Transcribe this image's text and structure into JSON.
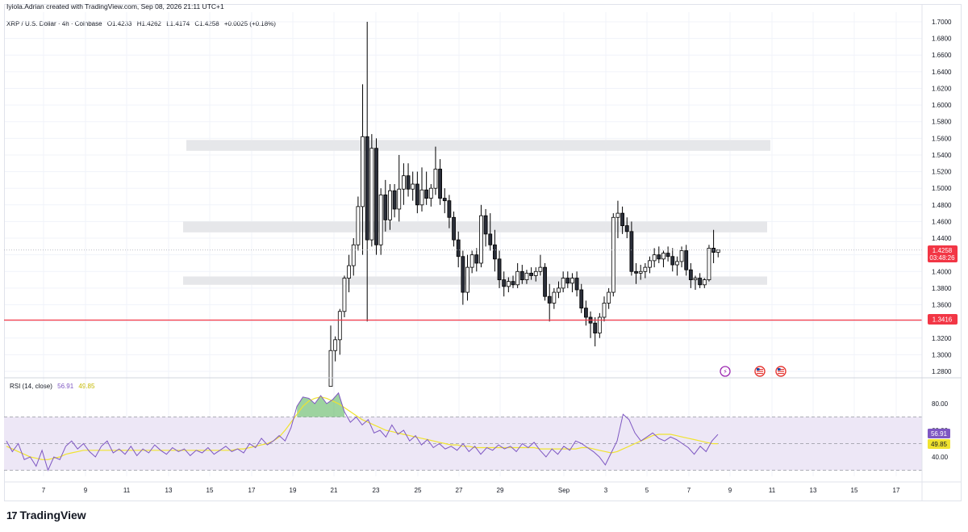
{
  "header": {
    "credit": "Iyiola.Adrian created with TradingView.com, Sep 08, 2026 21:11 UTC+1",
    "symbol": "XRP / U.S. Dollar · 4h · Coinbase",
    "open": "O1.4233",
    "high": "H1.4262",
    "low": "L1.4174",
    "close": "C1.4258",
    "change": "+0.0025 (+0.18%)"
  },
  "rsi_panel": {
    "label": "RSI (14, close)",
    "rsi_value": "56.91",
    "ma_value": "49.85"
  },
  "price_badge": {
    "price": "1.4258",
    "countdown": "03:48:26"
  },
  "level_badge": {
    "price": "1.3416"
  },
  "footer": {
    "brand": "TradingView"
  },
  "colors": {
    "up": "#ffffff",
    "down": "#000000",
    "support_line": "#f23645",
    "rsi_line": "#7e57c2",
    "rsi_ma": "#f0e32f",
    "rsi_band": "#ede7f6",
    "zone": "#e6e7ea"
  },
  "chart_data": [
    {
      "type": "candlestick",
      "title": "XRP / U.S. Dollar · 4h · Coinbase",
      "ylim": [
        1.27,
        1.705
      ],
      "y_ticks": [
        "1.7000",
        "1.6800",
        "1.6600",
        "1.6400",
        "1.6200",
        "1.6000",
        "1.5800",
        "1.5600",
        "1.5400",
        "1.5200",
        "1.5000",
        "1.4800",
        "1.4600",
        "1.4400",
        "1.4200",
        "1.4000",
        "1.3800",
        "1.3600",
        "1.3400",
        "1.3200",
        "1.3000",
        "1.2800"
      ],
      "x_ticks": [
        "7",
        "9",
        "11",
        "13",
        "15",
        "17",
        "19",
        "21",
        "23",
        "25",
        "27",
        "29",
        "Sep",
        "3",
        "5",
        "7",
        "9",
        "11",
        "13",
        "15",
        "17"
      ],
      "zones": [
        {
          "from": 1.545,
          "to": 1.558,
          "x_start": "13",
          "x_end": "11"
        },
        {
          "from": 1.447,
          "to": 1.46,
          "x_start": "13",
          "x_end": "11"
        },
        {
          "from": 1.384,
          "to": 1.394,
          "x_start": "13",
          "x_end": "11"
        }
      ],
      "horizontal_line": 1.3416,
      "last_price": 1.4258,
      "candles": [
        [
          1.262,
          1.335,
          1.258,
          1.305
        ],
        [
          1.305,
          1.322,
          1.292,
          1.318
        ],
        [
          1.318,
          1.355,
          1.3,
          1.352
        ],
        [
          1.352,
          1.395,
          1.345,
          1.392
        ],
        [
          1.392,
          1.42,
          1.375,
          1.407
        ],
        [
          1.407,
          1.44,
          1.395,
          1.432
        ],
        [
          1.432,
          1.49,
          1.425,
          1.478
        ],
        [
          1.478,
          1.625,
          1.42,
          1.562
        ],
        [
          1.562,
          1.7,
          1.34,
          1.438
        ],
        [
          1.438,
          1.565,
          1.43,
          1.548
        ],
        [
          1.548,
          1.56,
          1.42,
          1.432
        ],
        [
          1.432,
          1.5,
          1.42,
          1.492
        ],
        [
          1.492,
          1.51,
          1.448,
          1.462
        ],
        [
          1.462,
          1.505,
          1.45,
          1.497
        ],
        [
          1.497,
          1.505,
          1.465,
          1.475
        ],
        [
          1.475,
          1.54,
          1.46,
          1.499
        ],
        [
          1.499,
          1.53,
          1.48,
          1.515
        ],
        [
          1.515,
          1.53,
          1.49,
          1.499
        ],
        [
          1.499,
          1.52,
          1.485,
          1.505
        ],
        [
          1.505,
          1.52,
          1.47,
          1.48
        ],
        [
          1.48,
          1.525,
          1.472,
          1.498
        ],
        [
          1.498,
          1.52,
          1.48,
          1.488
        ],
        [
          1.488,
          1.505,
          1.478,
          1.5
        ],
        [
          1.5,
          1.55,
          1.492,
          1.523
        ],
        [
          1.523,
          1.535,
          1.48,
          1.488
        ],
        [
          1.488,
          1.5,
          1.47,
          1.485
        ],
        [
          1.485,
          1.492,
          1.452,
          1.465
        ],
        [
          1.465,
          1.472,
          1.43,
          1.438
        ],
        [
          1.438,
          1.448,
          1.405,
          1.418
        ],
        [
          1.418,
          1.425,
          1.36,
          1.375
        ],
        [
          1.375,
          1.42,
          1.365,
          1.405
        ],
        [
          1.405,
          1.425,
          1.398,
          1.42
        ],
        [
          1.42,
          1.428,
          1.4,
          1.41
        ],
        [
          1.41,
          1.48,
          1.405,
          1.467
        ],
        [
          1.467,
          1.475,
          1.43,
          1.445
        ],
        [
          1.445,
          1.47,
          1.425,
          1.432
        ],
        [
          1.432,
          1.45,
          1.4,
          1.415
        ],
        [
          1.415,
          1.425,
          1.38,
          1.39
        ],
        [
          1.39,
          1.4,
          1.37,
          1.382
        ],
        [
          1.382,
          1.393,
          1.375,
          1.388
        ],
        [
          1.388,
          1.395,
          1.38,
          1.384
        ],
        [
          1.384,
          1.41,
          1.38,
          1.4
        ],
        [
          1.4,
          1.408,
          1.385,
          1.39
        ],
        [
          1.39,
          1.402,
          1.385,
          1.398
        ],
        [
          1.398,
          1.405,
          1.39,
          1.395
        ],
        [
          1.395,
          1.405,
          1.388,
          1.4
        ],
        [
          1.4,
          1.42,
          1.395,
          1.405
        ],
        [
          1.405,
          1.41,
          1.365,
          1.37
        ],
        [
          1.37,
          1.385,
          1.34,
          1.362
        ],
        [
          1.362,
          1.38,
          1.355,
          1.375
        ],
        [
          1.375,
          1.388,
          1.368,
          1.38
        ],
        [
          1.38,
          1.4,
          1.375,
          1.392
        ],
        [
          1.392,
          1.4,
          1.38,
          1.386
        ],
        [
          1.386,
          1.398,
          1.375,
          1.392
        ],
        [
          1.392,
          1.4,
          1.37,
          1.378
        ],
        [
          1.378,
          1.385,
          1.35,
          1.356
        ],
        [
          1.356,
          1.365,
          1.335,
          1.345
        ],
        [
          1.345,
          1.352,
          1.32,
          1.338
        ],
        [
          1.338,
          1.345,
          1.31,
          1.326
        ],
        [
          1.326,
          1.35,
          1.32,
          1.345
        ],
        [
          1.345,
          1.37,
          1.34,
          1.362
        ],
        [
          1.362,
          1.38,
          1.355,
          1.375
        ],
        [
          1.375,
          1.47,
          1.37,
          1.465
        ],
        [
          1.465,
          1.485,
          1.44,
          1.47
        ],
        [
          1.47,
          1.478,
          1.445,
          1.455
        ],
        [
          1.455,
          1.465,
          1.44,
          1.448
        ],
        [
          1.448,
          1.46,
          1.395,
          1.4
        ],
        [
          1.4,
          1.41,
          1.385,
          1.398
        ],
        [
          1.398,
          1.408,
          1.39,
          1.4
        ],
        [
          1.4,
          1.41,
          1.392,
          1.405
        ],
        [
          1.405,
          1.418,
          1.398,
          1.413
        ],
        [
          1.413,
          1.428,
          1.405,
          1.42
        ],
        [
          1.42,
          1.43,
          1.41,
          1.415
        ],
        [
          1.415,
          1.425,
          1.405,
          1.422
        ],
        [
          1.422,
          1.43,
          1.412,
          1.418
        ],
        [
          1.418,
          1.428,
          1.4,
          1.408
        ],
        [
          1.408,
          1.418,
          1.395,
          1.412
        ],
        [
          1.412,
          1.43,
          1.405,
          1.425
        ],
        [
          1.425,
          1.432,
          1.395,
          1.402
        ],
        [
          1.402,
          1.41,
          1.38,
          1.39
        ],
        [
          1.39,
          1.395,
          1.378,
          1.392
        ],
        [
          1.392,
          1.398,
          1.38,
          1.384
        ],
        [
          1.384,
          1.392,
          1.38,
          1.39
        ],
        [
          1.39,
          1.432,
          1.388,
          1.428
        ],
        [
          1.428,
          1.45,
          1.41,
          1.423
        ],
        [
          1.423,
          1.426,
          1.417,
          1.4258
        ]
      ],
      "candle_start_x": 410,
      "candle_step": 5.65
    },
    {
      "type": "line",
      "title": "RSI (14, close)",
      "ylim": [
        20,
        90
      ],
      "y_ticks": [
        "80.00",
        "60.00",
        "40.00"
      ],
      "bands": [
        30,
        50,
        70
      ],
      "series": [
        {
          "name": "RSI",
          "values": [
            52,
            44,
            50,
            38,
            40,
            33,
            45,
            30,
            40,
            38,
            48,
            52,
            46,
            50,
            44,
            40,
            48,
            52,
            43,
            46,
            42,
            48,
            41,
            46,
            43,
            49,
            45,
            42,
            47,
            44,
            46,
            41,
            45,
            43,
            47,
            42,
            45,
            48,
            44,
            46,
            43,
            50,
            47,
            54,
            49,
            52,
            56,
            52,
            62,
            78,
            85,
            84,
            80,
            86,
            80,
            83,
            88,
            74,
            66,
            70,
            64,
            68,
            58,
            60,
            55,
            64,
            57,
            60,
            52,
            56,
            49,
            53,
            47,
            50,
            46,
            48,
            45,
            50,
            44,
            48,
            42,
            47,
            45,
            49,
            46,
            48,
            44,
            50,
            47,
            51,
            45,
            40,
            46,
            42,
            48,
            45,
            52,
            50,
            47,
            44,
            40,
            34,
            43,
            52,
            72,
            68,
            58,
            52,
            55,
            58,
            54,
            52,
            55,
            53,
            50,
            47,
            42,
            48,
            44,
            52,
            56.91
          ]
        },
        {
          "name": "MA",
          "values": [
            48,
            46,
            44,
            42,
            40,
            39,
            38,
            38,
            39,
            40,
            42,
            43,
            44,
            45,
            45,
            45,
            45,
            45,
            45,
            45,
            45,
            45,
            45,
            45,
            45,
            45,
            45,
            45,
            45,
            45,
            45,
            45,
            45,
            45,
            45,
            45,
            45,
            45,
            45,
            46,
            46,
            47,
            48,
            49,
            50,
            52,
            55,
            60,
            66,
            72,
            78,
            82,
            84,
            85,
            84,
            82,
            80,
            77,
            74,
            71,
            68,
            66,
            64,
            62,
            60,
            59,
            58,
            57,
            56,
            55,
            54,
            53,
            52,
            51,
            50,
            49,
            49,
            48,
            48,
            47,
            47,
            47,
            47,
            47,
            47,
            47,
            47,
            47,
            47,
            47,
            46,
            46,
            46,
            46,
            46,
            46,
            46,
            47,
            47,
            46,
            45,
            44,
            43,
            44,
            46,
            48,
            50,
            52,
            54,
            56,
            57,
            57,
            57,
            56,
            55,
            54,
            53,
            52,
            51,
            50,
            49.85
          ]
        }
      ]
    }
  ]
}
